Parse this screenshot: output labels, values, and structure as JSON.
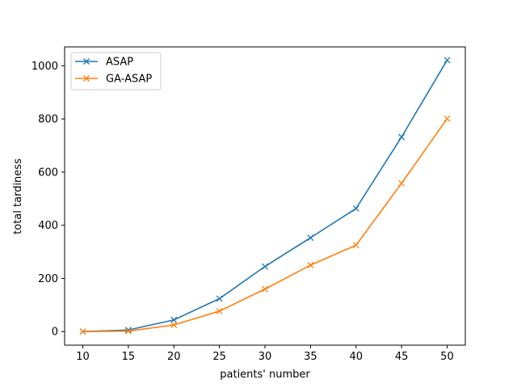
{
  "chart_data": {
    "type": "line",
    "title": "",
    "xlabel": "patients' number",
    "ylabel": "total tardiness",
    "x": [
      10,
      15,
      20,
      25,
      30,
      35,
      40,
      45,
      50
    ],
    "xticks": [
      "10",
      "15",
      "20",
      "25",
      "30",
      "35",
      "40",
      "45",
      "50"
    ],
    "yticks": [
      "0",
      "200",
      "400",
      "600",
      "800",
      "1000"
    ],
    "xlim": [
      8,
      52
    ],
    "ylim": [
      -51,
      1071
    ],
    "grid": false,
    "legend_position": "upper-left",
    "marker": "x",
    "series": [
      {
        "name": "ASAP",
        "color": "#1f77b4",
        "values": [
          0,
          6,
          44,
          124,
          245,
          353,
          463,
          732,
          1021
        ]
      },
      {
        "name": "GA-ASAP",
        "color": "#ff7f0e",
        "values": [
          0,
          2,
          25,
          77,
          160,
          250,
          325,
          558,
          801
        ]
      }
    ]
  }
}
